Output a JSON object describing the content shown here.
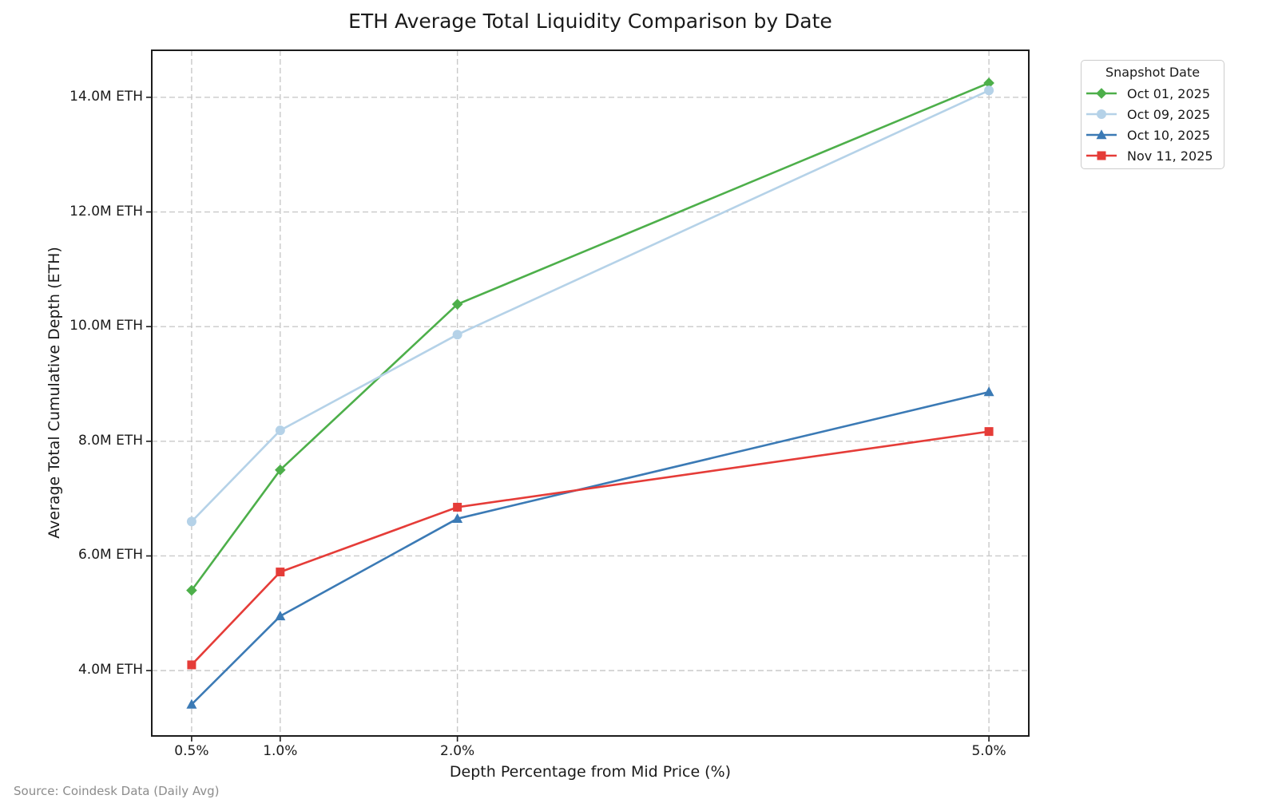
{
  "source_note": "Source: Coindesk Data (Daily Avg)",
  "chart_data": {
    "type": "line",
    "title": "ETH Average Total Liquidity Comparison by Date",
    "xlabel": "Depth Percentage from Mid Price (%)",
    "ylabel": "Average Total Cumulative Depth (ETH)",
    "x": [
      0.5,
      1.0,
      2.0,
      5.0
    ],
    "x_tick_labels": [
      "0.5%",
      "1.0%",
      "2.0%",
      "5.0%"
    ],
    "y_tick_values": [
      4,
      6,
      8,
      10,
      12,
      14
    ],
    "y_tick_labels": [
      "4.0M ETH",
      "6.0M ETH",
      "8.0M ETH",
      "10.0M ETH",
      "12.0M ETH",
      "14.0M ETH"
    ],
    "xlim": [
      0.275,
      5.225
    ],
    "ylim": [
      2.86,
      14.82
    ],
    "grid": true,
    "legend": {
      "title": "Snapshot Date",
      "position": "upper right outside"
    },
    "series": [
      {
        "name": "Oct 01, 2025",
        "marker": "diamond",
        "color": "#4daf4a",
        "values": [
          5.4,
          7.5,
          10.39,
          14.25
        ]
      },
      {
        "name": "Oct 09, 2025",
        "marker": "circle",
        "color": "#b5d2e8",
        "values": [
          6.6,
          8.19,
          9.86,
          14.12
        ]
      },
      {
        "name": "Oct 10, 2025",
        "marker": "triangle",
        "color": "#3b7ab5",
        "values": [
          3.41,
          4.95,
          6.65,
          8.86
        ]
      },
      {
        "name": "Nov 11, 2025",
        "marker": "square",
        "color": "#e53c38",
        "values": [
          4.1,
          5.72,
          6.85,
          8.17
        ]
      }
    ],
    "colors": {
      "grid": "#c9c9c9",
      "spine": "#1c1c1c",
      "tick": "#1c1c1c",
      "background": "#ffffff"
    }
  }
}
